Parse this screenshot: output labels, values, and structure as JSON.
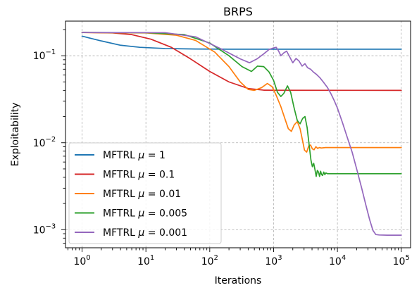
{
  "chart_data": {
    "type": "line",
    "title": "BRPS",
    "xlabel": "Iterations",
    "ylabel": "Exploitability",
    "xscale": "log",
    "yscale": "log",
    "xlim": [
      0.55,
      140000
    ],
    "ylim": [
      0.00062,
      0.25
    ],
    "grid": true,
    "legend_position": "lower-left",
    "x_ticks": [
      {
        "value": 1,
        "base": "10",
        "exp": "0"
      },
      {
        "value": 10,
        "base": "10",
        "exp": "1"
      },
      {
        "value": 100,
        "base": "10",
        "exp": "2"
      },
      {
        "value": 1000,
        "base": "10",
        "exp": "3"
      },
      {
        "value": 10000,
        "base": "10",
        "exp": "4"
      },
      {
        "value": 100000,
        "base": "10",
        "exp": "5"
      }
    ],
    "y_ticks": [
      {
        "value": 0.1,
        "base": "10",
        "exp": "−1"
      },
      {
        "value": 0.01,
        "base": "10",
        "exp": "−2"
      },
      {
        "value": 0.001,
        "base": "10",
        "exp": "−3"
      }
    ],
    "series": [
      {
        "name": "MFTRL μ = 1",
        "legend_prefix": "MFTRL ",
        "legend_symbol": "μ",
        "legend_value": " = 1",
        "color": "#1f77b4",
        "points": [
          [
            1,
            0.168
          ],
          [
            2,
            0.148
          ],
          [
            4,
            0.132
          ],
          [
            8,
            0.125
          ],
          [
            20,
            0.121
          ],
          [
            60,
            0.1195
          ],
          [
            200,
            0.119
          ],
          [
            1000,
            0.119
          ],
          [
            100000,
            0.119
          ]
        ]
      },
      {
        "name": "MFTRL μ = 0.1",
        "legend_prefix": "MFTRL ",
        "legend_symbol": "μ",
        "legend_value": " = 0.1",
        "color": "#d62728",
        "points": [
          [
            1,
            0.185
          ],
          [
            3,
            0.183
          ],
          [
            6,
            0.175
          ],
          [
            12,
            0.155
          ],
          [
            25,
            0.125
          ],
          [
            50,
            0.092
          ],
          [
            100,
            0.066
          ],
          [
            200,
            0.05
          ],
          [
            400,
            0.042
          ],
          [
            700,
            0.0402
          ],
          [
            1000,
            0.0401
          ],
          [
            100000,
            0.04
          ]
        ]
      },
      {
        "name": "MFTRL μ = 0.01",
        "legend_prefix": "MFTRL ",
        "legend_symbol": "μ",
        "legend_value": " = 0.01",
        "color": "#ff7f0e",
        "points": [
          [
            1,
            0.185
          ],
          [
            10,
            0.183
          ],
          [
            30,
            0.172
          ],
          [
            60,
            0.15
          ],
          [
            120,
            0.11
          ],
          [
            200,
            0.075
          ],
          [
            300,
            0.05
          ],
          [
            400,
            0.041
          ],
          [
            500,
            0.04
          ],
          [
            650,
            0.043
          ],
          [
            800,
            0.048
          ],
          [
            950,
            0.044
          ],
          [
            1100,
            0.035
          ],
          [
            1300,
            0.026
          ],
          [
            1500,
            0.019
          ],
          [
            1700,
            0.0145
          ],
          [
            1900,
            0.0135
          ],
          [
            2100,
            0.016
          ],
          [
            2350,
            0.0175
          ],
          [
            2600,
            0.0145
          ],
          [
            2850,
            0.0105
          ],
          [
            3050,
            0.0082
          ],
          [
            3300,
            0.0078
          ],
          [
            3550,
            0.0092
          ],
          [
            3800,
            0.0094
          ],
          [
            4050,
            0.0085
          ],
          [
            4300,
            0.0083
          ],
          [
            4600,
            0.009
          ],
          [
            4900,
            0.0086
          ],
          [
            5200,
            0.0088
          ],
          [
            5600,
            0.0087
          ],
          [
            6500,
            0.0088
          ],
          [
            100000,
            0.0088
          ]
        ]
      },
      {
        "name": "MFTRL μ = 0.005",
        "legend_prefix": "MFTRL ",
        "legend_symbol": "μ",
        "legend_value": " = 0.005",
        "color": "#2ca02c",
        "points": [
          [
            1,
            0.185
          ],
          [
            10,
            0.184
          ],
          [
            40,
            0.175
          ],
          [
            100,
            0.14
          ],
          [
            200,
            0.1
          ],
          [
            320,
            0.075
          ],
          [
            450,
            0.066
          ],
          [
            560,
            0.076
          ],
          [
            700,
            0.075
          ],
          [
            850,
            0.065
          ],
          [
            1000,
            0.052
          ],
          [
            1150,
            0.038
          ],
          [
            1300,
            0.034
          ],
          [
            1450,
            0.037
          ],
          [
            1650,
            0.045
          ],
          [
            1850,
            0.038
          ],
          [
            2100,
            0.025
          ],
          [
            2350,
            0.018
          ],
          [
            2600,
            0.0165
          ],
          [
            2850,
            0.019
          ],
          [
            3100,
            0.02
          ],
          [
            3350,
            0.015
          ],
          [
            3600,
            0.0095
          ],
          [
            3850,
            0.0063
          ],
          [
            4050,
            0.0053
          ],
          [
            4250,
            0.0058
          ],
          [
            4450,
            0.0049
          ],
          [
            4650,
            0.0041
          ],
          [
            4850,
            0.0048
          ],
          [
            5050,
            0.0046
          ],
          [
            5250,
            0.0041
          ],
          [
            5450,
            0.0047
          ],
          [
            5650,
            0.0043
          ],
          [
            5850,
            0.0042
          ],
          [
            6100,
            0.0046
          ],
          [
            6350,
            0.0043
          ],
          [
            6600,
            0.0045
          ],
          [
            7000,
            0.0044
          ],
          [
            8000,
            0.0044
          ],
          [
            100000,
            0.0044
          ]
        ]
      },
      {
        "name": "MFTRL μ = 0.001",
        "legend_prefix": "MFTRL ",
        "legend_symbol": "μ",
        "legend_value": " = 0.001",
        "color": "#9467bd",
        "points": [
          [
            1,
            0.185
          ],
          [
            20,
            0.184
          ],
          [
            60,
            0.165
          ],
          [
            150,
            0.12
          ],
          [
            300,
            0.092
          ],
          [
            420,
            0.083
          ],
          [
            550,
            0.092
          ],
          [
            700,
            0.105
          ],
          [
            850,
            0.118
          ],
          [
            1000,
            0.123
          ],
          [
            1100,
            0.125
          ],
          [
            1200,
            0.113
          ],
          [
            1300,
            0.1
          ],
          [
            1450,
            0.108
          ],
          [
            1600,
            0.113
          ],
          [
            1800,
            0.096
          ],
          [
            2000,
            0.083
          ],
          [
            2250,
            0.093
          ],
          [
            2500,
            0.087
          ],
          [
            2800,
            0.076
          ],
          [
            3100,
            0.081
          ],
          [
            3400,
            0.073
          ],
          [
            3800,
            0.07
          ],
          [
            4200,
            0.065
          ],
          [
            4700,
            0.061
          ],
          [
            5300,
            0.056
          ],
          [
            6000,
            0.05
          ],
          [
            7000,
            0.043
          ],
          [
            8000,
            0.036
          ],
          [
            9000,
            0.03
          ],
          [
            10000,
            0.025
          ],
          [
            12000,
            0.017
          ],
          [
            14000,
            0.012
          ],
          [
            17000,
            0.0078
          ],
          [
            20000,
            0.005
          ],
          [
            24000,
            0.003
          ],
          [
            28000,
            0.0019
          ],
          [
            32000,
            0.0013
          ],
          [
            36000,
            0.00098
          ],
          [
            40000,
            0.00088
          ],
          [
            45000,
            0.00087
          ],
          [
            60000,
            0.000865
          ],
          [
            100000,
            0.000865
          ]
        ]
      }
    ]
  }
}
